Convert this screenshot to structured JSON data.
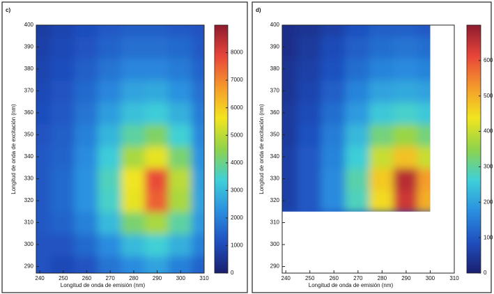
{
  "chart_data": [
    {
      "type": "heatmap",
      "label": "c)",
      "xlabel": "Longitud de onda de emisión (nm)",
      "ylabel": "Longitud de onda de excitación (nm)",
      "x": [
        240,
        250,
        260,
        270,
        280,
        290,
        300,
        310
      ],
      "y": [
        290,
        300,
        310,
        320,
        330,
        340,
        350,
        360,
        370,
        380,
        390,
        400
      ],
      "z": [
        [
          1200,
          1000,
          1200,
          1800,
          2200,
          2600,
          2000,
          1500
        ],
        [
          1200,
          1200,
          1600,
          2200,
          3000,
          3400,
          2800,
          2000
        ],
        [
          1300,
          1500,
          2000,
          3000,
          4200,
          4800,
          3800,
          2400
        ],
        [
          1300,
          1600,
          2300,
          3500,
          5500,
          7500,
          4800,
          2600
        ],
        [
          1300,
          1600,
          2300,
          3600,
          5600,
          7800,
          5000,
          2500
        ],
        [
          1300,
          1500,
          2200,
          3300,
          4800,
          5500,
          4200,
          2300
        ],
        [
          1200,
          1400,
          2000,
          2900,
          3800,
          4300,
          3400,
          2100
        ],
        [
          1100,
          1300,
          1800,
          2500,
          3100,
          3300,
          2800,
          1900
        ],
        [
          1000,
          1200,
          1600,
          2100,
          2600,
          2700,
          2300,
          1700
        ],
        [
          900,
          1100,
          1400,
          1800,
          2100,
          2100,
          1900,
          1500
        ],
        [
          800,
          1000,
          1200,
          1500,
          1700,
          1700,
          1600,
          1300
        ],
        [
          700,
          900,
          1100,
          1300,
          1400,
          1400,
          1300,
          1200
        ]
      ],
      "xlim": [
        238.5,
        310
      ],
      "ylim": [
        287,
        400
      ],
      "xticks": [
        240,
        250,
        260,
        270,
        280,
        290,
        300,
        310
      ],
      "yticks": [
        290,
        300,
        310,
        320,
        330,
        340,
        350,
        360,
        370,
        380,
        390,
        400
      ],
      "clim": [
        0,
        9000
      ],
      "cticks": [
        0,
        1000,
        2000,
        3000,
        4000,
        5000,
        6000,
        7000,
        8000
      ],
      "colormap": [
        "#1a1f6e",
        "#1f4fbf",
        "#2a8fe0",
        "#3fd0d8",
        "#8fd34a",
        "#f2e51f",
        "#f59a2b",
        "#e8453a",
        "#8e1b2e"
      ]
    },
    {
      "type": "heatmap",
      "label": "d)",
      "xlabel": "Longitud de onda de emisión (nm)",
      "ylabel": "Longitud de onda de excitación (nm)",
      "x": [
        240,
        250,
        260,
        270,
        280,
        290,
        300
      ],
      "y": [
        320,
        330,
        340,
        350,
        360,
        370,
        380,
        390,
        400
      ],
      "z": [
        [
          60,
          100,
          170,
          280,
          450,
          640,
          500
        ],
        [
          60,
          100,
          170,
          290,
          470,
          660,
          520
        ],
        [
          60,
          100,
          160,
          260,
          400,
          480,
          400
        ],
        [
          50,
          90,
          150,
          230,
          320,
          360,
          320
        ],
        [
          50,
          80,
          130,
          190,
          250,
          270,
          250
        ],
        [
          40,
          70,
          110,
          160,
          200,
          210,
          200
        ],
        [
          40,
          60,
          90,
          130,
          160,
          170,
          160
        ],
        [
          30,
          50,
          80,
          110,
          130,
          140,
          130
        ],
        [
          30,
          40,
          60,
          90,
          110,
          110,
          100
        ]
      ],
      "xlim": [
        238.5,
        310
      ],
      "ylim": [
        287,
        400
      ],
      "xticks": [
        240,
        250,
        260,
        270,
        280,
        290,
        300,
        310
      ],
      "yticks": [
        290,
        300,
        310,
        320,
        330,
        340,
        350,
        360,
        370,
        380,
        390,
        400
      ],
      "clim": [
        0,
        700
      ],
      "cticks": [
        0,
        100,
        200,
        300,
        400,
        500,
        600
      ],
      "colormap": [
        "#1a1f6e",
        "#1f4fbf",
        "#2a8fe0",
        "#3fd0d8",
        "#8fd34a",
        "#f2e51f",
        "#f59a2b",
        "#e8453a",
        "#8e1b2e"
      ]
    }
  ]
}
